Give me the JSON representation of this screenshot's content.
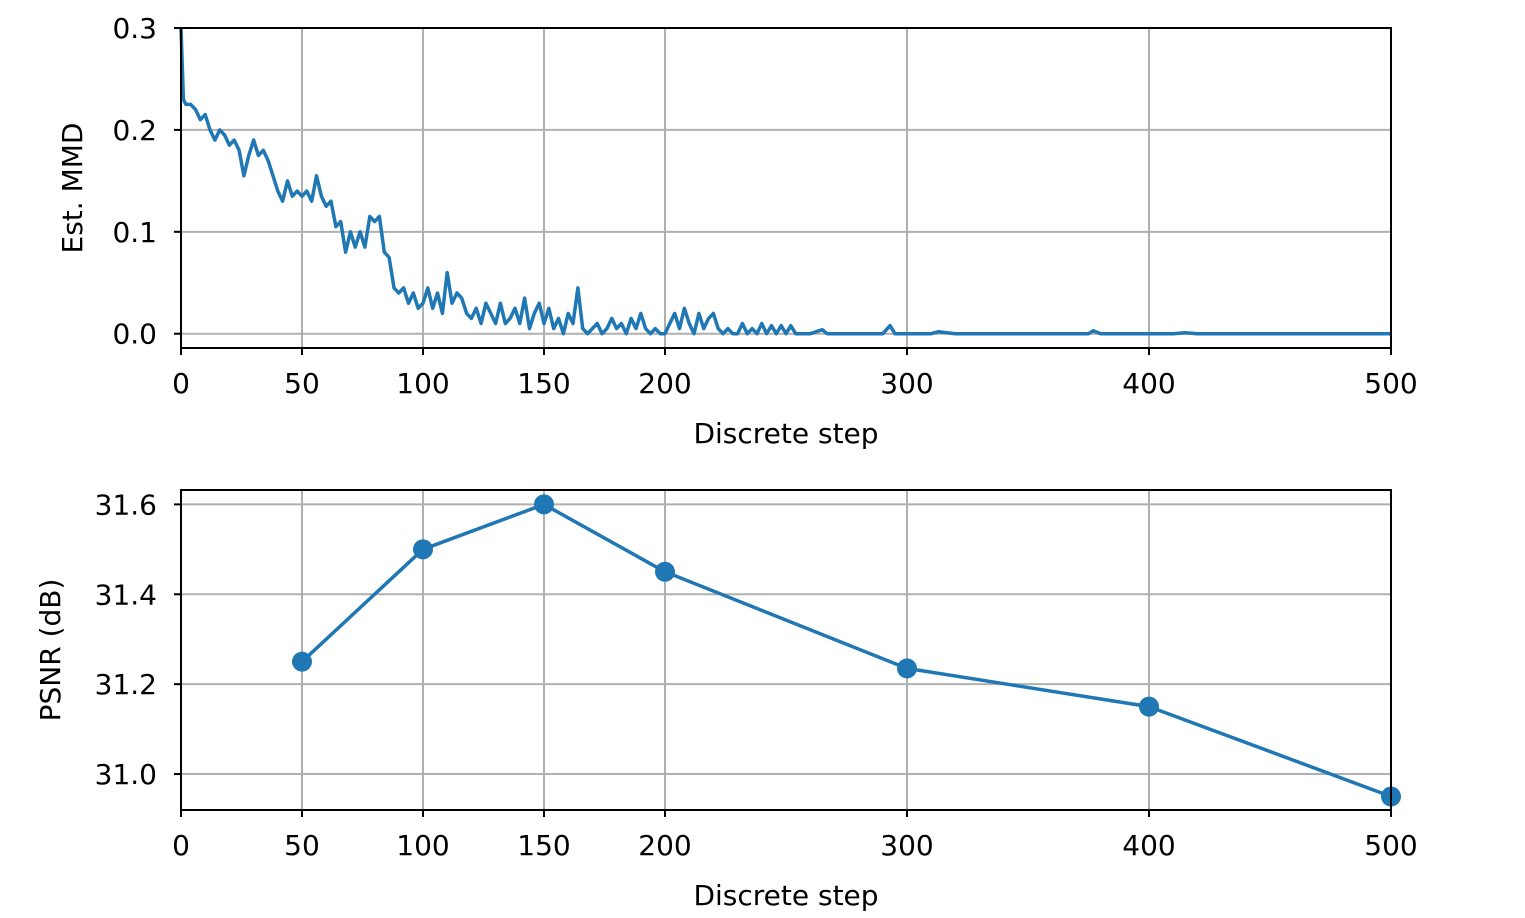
{
  "chart_data": [
    {
      "type": "line",
      "xlabel": "Discrete step",
      "ylabel": "Est. MMD",
      "xlim": [
        0,
        500
      ],
      "ylim": [
        -0.014,
        0.3
      ],
      "x_ticks": [
        "0",
        "50",
        "100",
        "150",
        "200",
        "300",
        "400",
        "500"
      ],
      "x_tick_values": [
        0,
        50,
        100,
        150,
        200,
        300,
        400,
        500
      ],
      "y_ticks": [
        "0.0",
        "0.1",
        "0.2",
        "0.3"
      ],
      "y_tick_values": [
        0.0,
        0.1,
        0.2,
        0.3
      ],
      "grid": true,
      "color": "#1f77b4",
      "series": [
        {
          "x": [
            0,
            1,
            2,
            4,
            6,
            8,
            10,
            12,
            14,
            16,
            18,
            20,
            22,
            24,
            26,
            28,
            30,
            32,
            34,
            36,
            38,
            40,
            42,
            44,
            46,
            48,
            50,
            52,
            54,
            56,
            58,
            60,
            62,
            64,
            66,
            68,
            70,
            72,
            74,
            76,
            78,
            80,
            82,
            84,
            86,
            88,
            90,
            92,
            94,
            96,
            98,
            100,
            102,
            104,
            106,
            108,
            110,
            112,
            114,
            116,
            118,
            120,
            122,
            124,
            126,
            128,
            130,
            132,
            134,
            136,
            138,
            140,
            142,
            144,
            146,
            148,
            150,
            152,
            154,
            156,
            158,
            160,
            162,
            164,
            166,
            168,
            170,
            172,
            174,
            176,
            178,
            180,
            182,
            184,
            186,
            188,
            190,
            192,
            194,
            196,
            198,
            200,
            202,
            204,
            206,
            208,
            210,
            212,
            214,
            216,
            218,
            220,
            222,
            224,
            226,
            228,
            230,
            232,
            234,
            236,
            238,
            240,
            242,
            244,
            246,
            248,
            250,
            252,
            254,
            256,
            260,
            265,
            267,
            270,
            280,
            290,
            293,
            295,
            300,
            310,
            313,
            320,
            340,
            360,
            375,
            377,
            380,
            400,
            410,
            415,
            420,
            450,
            480,
            500
          ],
          "y": [
            0.3,
            0.23,
            0.225,
            0.225,
            0.22,
            0.21,
            0.215,
            0.2,
            0.19,
            0.2,
            0.195,
            0.185,
            0.19,
            0.18,
            0.155,
            0.175,
            0.19,
            0.175,
            0.18,
            0.17,
            0.155,
            0.14,
            0.13,
            0.15,
            0.135,
            0.14,
            0.135,
            0.14,
            0.13,
            0.155,
            0.135,
            0.125,
            0.13,
            0.105,
            0.11,
            0.08,
            0.1,
            0.085,
            0.1,
            0.085,
            0.115,
            0.11,
            0.115,
            0.08,
            0.075,
            0.045,
            0.04,
            0.045,
            0.03,
            0.04,
            0.025,
            0.03,
            0.045,
            0.025,
            0.04,
            0.02,
            0.06,
            0.03,
            0.04,
            0.035,
            0.02,
            0.015,
            0.025,
            0.01,
            0.03,
            0.02,
            0.01,
            0.03,
            0.01,
            0.015,
            0.025,
            0.01,
            0.035,
            0.005,
            0.02,
            0.03,
            0.01,
            0.025,
            0.005,
            0.015,
            0.0,
            0.02,
            0.01,
            0.045,
            0.005,
            0.0,
            0.005,
            0.01,
            0.0,
            0.005,
            0.015,
            0.005,
            0.01,
            0.0,
            0.015,
            0.005,
            0.02,
            0.005,
            0.0,
            0.005,
            0.0,
            0.0,
            0.01,
            0.02,
            0.005,
            0.025,
            0.01,
            0.0,
            0.02,
            0.005,
            0.015,
            0.02,
            0.005,
            0.0,
            0.005,
            0.0,
            0.0,
            0.01,
            0.0,
            0.005,
            0.0,
            0.01,
            0.0,
            0.008,
            0.0,
            0.008,
            0.0,
            0.008,
            0.0,
            0.0,
            0.0,
            0.004,
            0.0,
            0.0,
            0.0,
            0.0,
            0.008,
            0.0,
            0.0,
            0.0,
            0.002,
            0.0,
            0.0,
            0.0,
            0.0,
            0.003,
            0.0,
            0.0,
            0.0,
            0.001,
            0.0,
            0.0,
            0.0,
            0.0
          ]
        }
      ]
    },
    {
      "type": "line",
      "xlabel": "Discrete step",
      "ylabel": "PSNR (dB)",
      "xlim": [
        0,
        500
      ],
      "ylim": [
        30.92,
        31.632
      ],
      "x_ticks": [
        "0",
        "50",
        "100",
        "150",
        "200",
        "300",
        "400",
        "500"
      ],
      "x_tick_values": [
        0,
        50,
        100,
        150,
        200,
        300,
        400,
        500
      ],
      "y_ticks": [
        "31.0",
        "31.2",
        "31.4",
        "31.6"
      ],
      "y_tick_values": [
        31.0,
        31.2,
        31.4,
        31.6
      ],
      "grid": true,
      "color": "#1f77b4",
      "markers": true,
      "series": [
        {
          "x": [
            50,
            100,
            150,
            200,
            300,
            400,
            500
          ],
          "y": [
            31.25,
            31.5,
            31.6,
            31.45,
            31.235,
            31.15,
            30.95
          ]
        }
      ]
    }
  ]
}
